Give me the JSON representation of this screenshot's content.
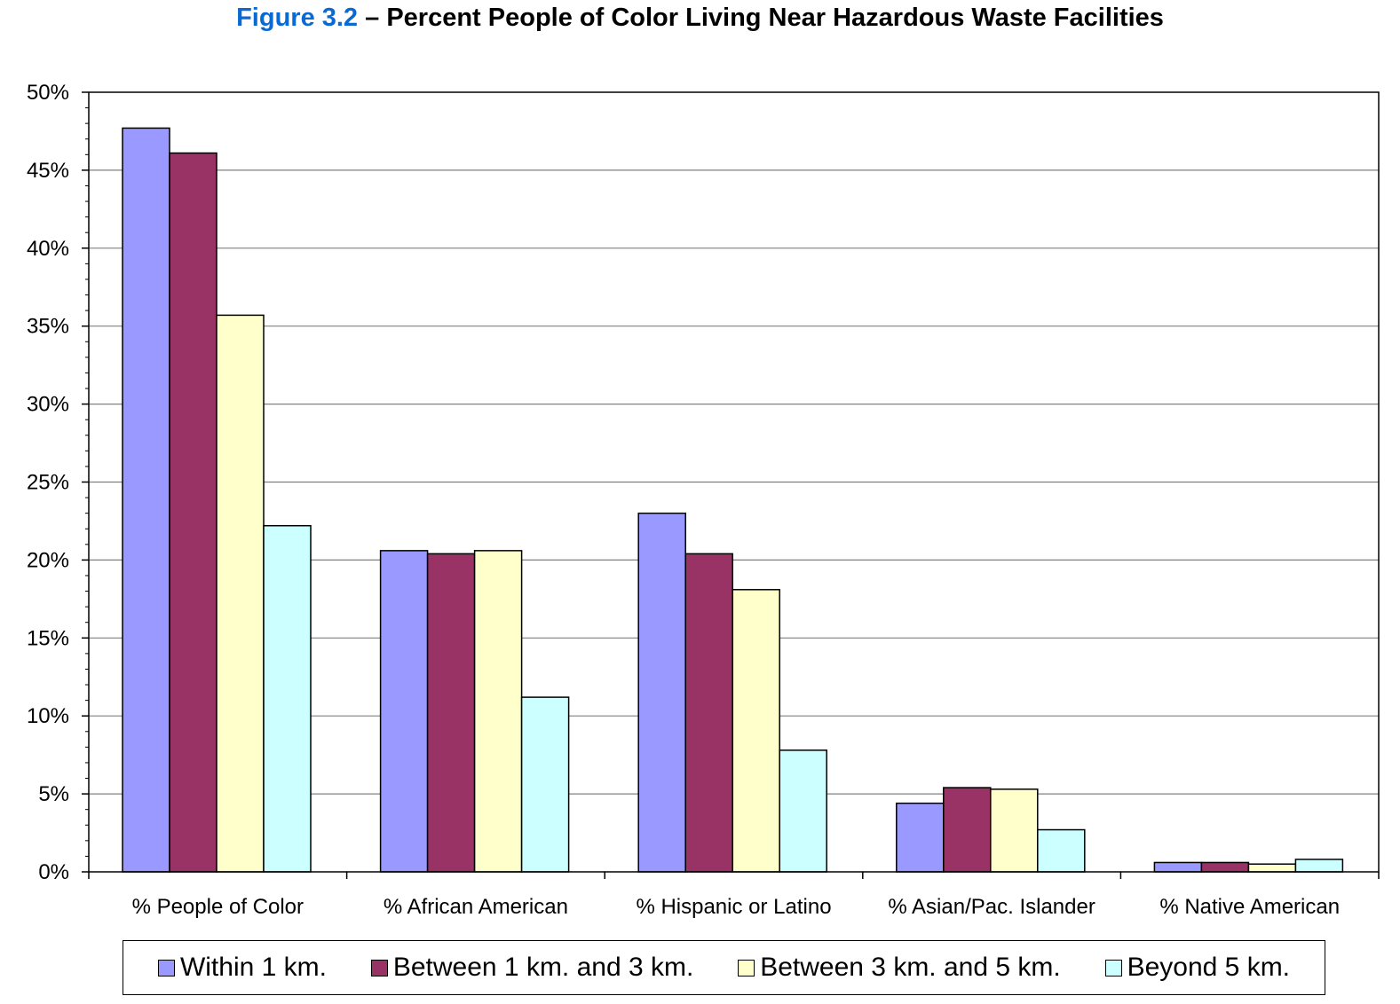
{
  "title": {
    "figure_label": "Figure 3.2",
    "text": " – Percent People of Color Living Near Hazardous Waste Facilities"
  },
  "colors": {
    "title_accent": "#0a6ad4",
    "series": [
      "#9999ff",
      "#993366",
      "#ffffcc",
      "#ccffff"
    ]
  },
  "chart_data": {
    "type": "bar",
    "title": "Figure 3.2 – Percent People of Color Living Near Hazardous Waste Facilities",
    "xlabel": "",
    "ylabel": "",
    "ylim": [
      0,
      50
    ],
    "grid": true,
    "legend_position": "bottom",
    "yticks": [
      "0%",
      "5%",
      "10%",
      "15%",
      "20%",
      "25%",
      "30%",
      "35%",
      "40%",
      "45%",
      "50%"
    ],
    "categories": [
      "% People of Color",
      "% African American",
      "% Hispanic or Latino",
      "% Asian/Pac. Islander",
      "% Native American"
    ],
    "series": [
      {
        "name": "Within 1 km.",
        "values": [
          47.7,
          20.6,
          23.0,
          4.4,
          0.6
        ]
      },
      {
        "name": "Between 1 km. and 3 km.",
        "values": [
          46.1,
          20.4,
          20.4,
          5.4,
          0.6
        ]
      },
      {
        "name": "Between 3 km. and 5 km.",
        "values": [
          35.7,
          20.6,
          18.1,
          5.3,
          0.5
        ]
      },
      {
        "name": "Beyond 5 km.",
        "values": [
          22.2,
          11.2,
          7.8,
          2.7,
          0.8
        ]
      }
    ]
  }
}
